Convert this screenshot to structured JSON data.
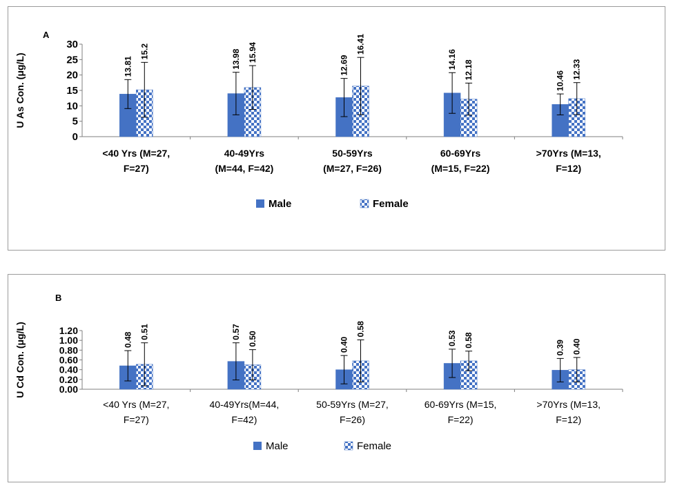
{
  "colors": {
    "male": "#4472C4",
    "female": "#4472C4",
    "axis": "#7f7f7f",
    "text": "#000000"
  },
  "chart_data": [
    {
      "panel_label": "A",
      "type": "bar",
      "ylabel": "U As Con. (μg/L)",
      "ylim": [
        0,
        30
      ],
      "yticks": [
        "0",
        "5",
        "10",
        "15",
        "20",
        "25",
        "30"
      ],
      "ytick_values": [
        0,
        5,
        10,
        15,
        20,
        25,
        30
      ],
      "categories": [
        [
          "<40 Yrs (M=27,",
          "F=27)"
        ],
        [
          "40-49Yrs",
          "(M=44, F=42)"
        ],
        [
          "50-59Yrs",
          "(M=27, F=26)"
        ],
        [
          "60-69Yrs",
          "(M=15, F=22)"
        ],
        [
          ">70Yrs (M=13,",
          "F=12)"
        ]
      ],
      "series": [
        {
          "name": "Male",
          "pattern": "solid",
          "values": [
            13.81,
            13.98,
            12.69,
            14.16,
            10.46
          ],
          "labels": [
            "13.81",
            "13.98",
            "12.69",
            "14.16",
            "10.46"
          ],
          "err": [
            4.7,
            6.9,
            6.2,
            6.6,
            3.4
          ]
        },
        {
          "name": "Female",
          "pattern": "checker",
          "values": [
            15.2,
            15.94,
            16.41,
            12.18,
            12.33
          ],
          "labels": [
            "15.2",
            "15.94",
            "16.41",
            "12.18",
            "12.33"
          ],
          "err": [
            8.9,
            7.1,
            9.3,
            5.2,
            5.2
          ]
        }
      ],
      "legend": [
        "Male",
        "Female"
      ],
      "legend_position": "bottom"
    },
    {
      "panel_label": "B",
      "type": "bar",
      "ylabel": "U Cd Con. (μg/L)",
      "ylim": [
        0,
        1.2
      ],
      "yticks": [
        "0.00",
        "0.20",
        "0.40",
        "0.60",
        "0.80",
        "1.00",
        "1.20"
      ],
      "ytick_values": [
        0,
        0.2,
        0.4,
        0.6,
        0.8,
        1.0,
        1.2
      ],
      "categories": [
        [
          "<40 Yrs (M=27,",
          "F=27)"
        ],
        [
          "40-49Yrs(M=44,",
          "F=42)"
        ],
        [
          "50-59Yrs (M=27,",
          "F=26)"
        ],
        [
          "60-69Yrs (M=15,",
          "F=22)"
        ],
        [
          ">70Yrs (M=13,",
          "F=12)"
        ]
      ],
      "series": [
        {
          "name": "Male",
          "pattern": "solid",
          "values": [
            0.48,
            0.57,
            0.4,
            0.53,
            0.39
          ],
          "labels": [
            "0.48",
            "0.57",
            "0.40",
            "0.53",
            "0.39"
          ],
          "err": [
            0.31,
            0.38,
            0.29,
            0.29,
            0.24
          ]
        },
        {
          "name": "Female",
          "pattern": "checker",
          "values": [
            0.51,
            0.5,
            0.58,
            0.58,
            0.4
          ],
          "labels": [
            "0.51",
            "0.50",
            "0.58",
            "0.58",
            "0.40"
          ],
          "err": [
            0.44,
            0.31,
            0.43,
            0.2,
            0.25
          ]
        }
      ],
      "legend": [
        "Male",
        "Female"
      ],
      "legend_position": "bottom"
    }
  ]
}
